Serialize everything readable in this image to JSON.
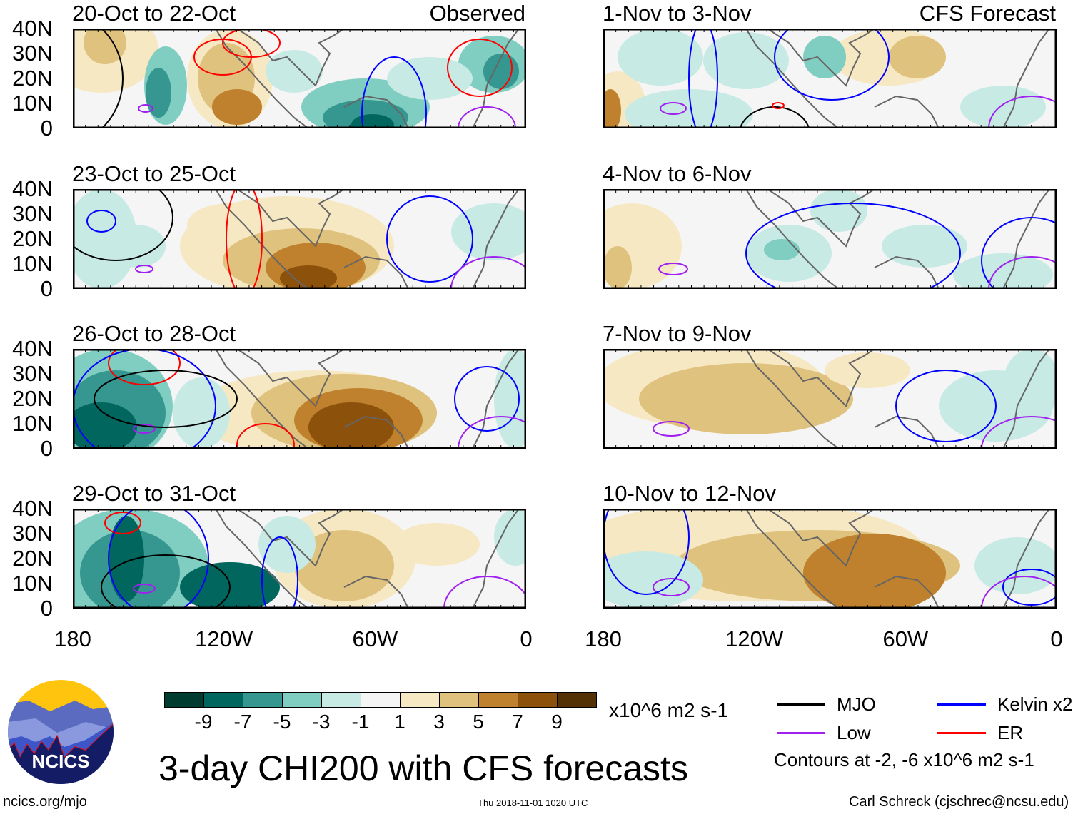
{
  "chart_data": {
    "type": "heatmap",
    "title": "3-day CHI200 with CFS forecasts",
    "variable": "CHI200",
    "units": "x10^6 m2 s-1",
    "x_ticks": [
      "180",
      "120W",
      "60W",
      "0"
    ],
    "y_ticks": [
      "40N",
      "30N",
      "20N",
      "10N",
      "0"
    ],
    "lon_range": [
      -180,
      0
    ],
    "lat_range": [
      0,
      40
    ],
    "color_scale": {
      "tick_labels": [
        "-9",
        "-7",
        "-5",
        "-3",
        "-1",
        "1",
        "3",
        "5",
        "7",
        "9"
      ],
      "colors": [
        "#003c30",
        "#01665e",
        "#35978f",
        "#80cdc1",
        "#c7eae5",
        "#f5f5f5",
        "#f6e8c3",
        "#dfc27d",
        "#bf812d",
        "#8c510a",
        "#543005"
      ]
    },
    "panels": [
      {
        "title": "20-Oct to 22-Oct",
        "tag": "Observed"
      },
      {
        "title": "1-Nov to 3-Nov",
        "tag": "CFS Forecast"
      },
      {
        "title": "23-Oct to 25-Oct"
      },
      {
        "title": "4-Nov to 6-Nov"
      },
      {
        "title": "26-Oct to 28-Oct"
      },
      {
        "title": "7-Nov to 9-Nov"
      },
      {
        "title": "29-Oct to 31-Oct"
      },
      {
        "title": "10-Nov to 12-Nov"
      }
    ],
    "legend": [
      {
        "label": "MJO",
        "color": "#000000"
      },
      {
        "label": "Kelvin x2",
        "color": "#0000ff"
      },
      {
        "label": "Low",
        "color": "#a020f0"
      },
      {
        "label": "ER",
        "color": "#ff0000"
      }
    ],
    "contour_note": "Contours at -2, -6 x10^6 m2 s-1"
  },
  "footer": {
    "logo_text": "NCICS",
    "url": "ncics.org/mjo",
    "timestamp": "Thu 2018-11-01 1020 UTC",
    "author": "Carl Schreck (cjschrec@ncsu.edu)"
  }
}
